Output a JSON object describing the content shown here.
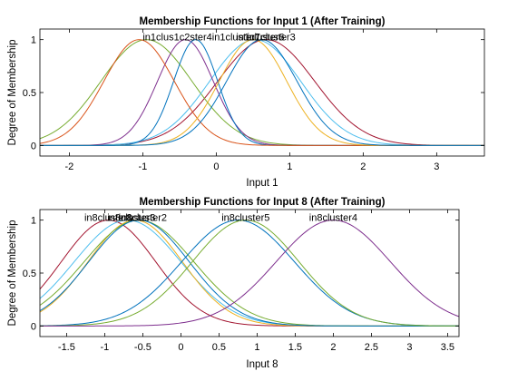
{
  "chart_data": [
    {
      "type": "line",
      "title": "Membership Functions for Input 1 (After Training)",
      "xlabel": "Input 1",
      "ylabel": "Degree of Membership",
      "xlim": [
        -2.4,
        3.65
      ],
      "ylim": [
        -0.1,
        1.1
      ],
      "xticks": [
        -2,
        -1,
        0,
        1,
        2,
        3
      ],
      "yticks": [
        0,
        0.5,
        1
      ],
      "grid": false,
      "mf_labels_text": [
        "in1cluster1",
        "in1cluster2",
        "in1cluster3",
        "in1cluster4",
        "in1cluster5",
        "in1cluster6",
        "in1cluster7"
      ],
      "label_note": "labels overlap at the top of the axes; displayed text reads 'in1ulus1c2ster4in1cluster7' region",
      "series": [
        {
          "center": 0.68,
          "sigma": 0.66,
          "color": "#A2142F"
        },
        {
          "center": -0.95,
          "sigma": 0.62,
          "color": "#77AC30"
        },
        {
          "center": 0.53,
          "sigma": 0.62,
          "color": "#4DBEEE"
        },
        {
          "center": -0.42,
          "sigma": 0.38,
          "color": "#7E2F8E"
        },
        {
          "center": -0.28,
          "sigma": 0.3,
          "color": "#0072BD"
        },
        {
          "center": -1.05,
          "sigma": 0.48,
          "color": "#D95319"
        },
        {
          "center": 0.5,
          "sigma": 0.46,
          "color": "#EDB120"
        },
        {
          "center": 0.62,
          "sigma": 0.48,
          "color": "#0072BD"
        }
      ]
    },
    {
      "type": "line",
      "title": "Membership Functions for Input 8 (After Training)",
      "xlabel": "Input 8",
      "ylabel": "Degree of Membership",
      "xlim": [
        -1.85,
        3.65
      ],
      "ylim": [
        -0.1,
        1.1
      ],
      "xticks": [
        -1.5,
        -1,
        -0.5,
        0,
        0.5,
        1,
        1.5,
        2,
        2.5,
        3,
        3.5
      ],
      "yticks": [
        0,
        0.5,
        1
      ],
      "grid": false,
      "mf_labels_text": [
        "in8cluster1",
        "in8cluster2",
        "in8cluster3",
        "in8cluster5",
        "in8cluster4"
      ],
      "series": [
        {
          "center": -0.95,
          "sigma": 0.62,
          "color": "#A2142F"
        },
        {
          "center": -0.7,
          "sigma": 0.7,
          "color": "#4DBEEE"
        },
        {
          "center": -0.6,
          "sigma": 0.62,
          "color": "#EDB120"
        },
        {
          "center": -0.55,
          "sigma": 0.72,
          "color": "#77AC30"
        },
        {
          "center": -0.55,
          "sigma": 0.66,
          "color": "#0072BD"
        },
        {
          "center": 0.75,
          "sigma": 0.74,
          "color": "#0072BD"
        },
        {
          "center": 0.85,
          "sigma": 0.7,
          "color": "#77AC30"
        },
        {
          "center": 2.0,
          "sigma": 0.75,
          "color": "#7E2F8E"
        }
      ]
    }
  ],
  "labels_display": {
    "top": [
      {
        "text": "in1clus1c2ster4in1cluster7",
        "at": -0.2
      },
      {
        "text": "in1cluster6",
        "at": 0.6
      },
      {
        "text": "in1cluster3",
        "at": 0.75
      }
    ],
    "bottom": [
      {
        "text": "in8cluster1",
        "at": -0.95
      },
      {
        "text": "in8cluster2",
        "at": -0.5
      },
      {
        "text": "in8cluster3",
        "at": -0.65
      },
      {
        "text": "in8cluster5",
        "at": 0.85
      },
      {
        "text": "in8cluster4",
        "at": 2.0
      }
    ]
  }
}
